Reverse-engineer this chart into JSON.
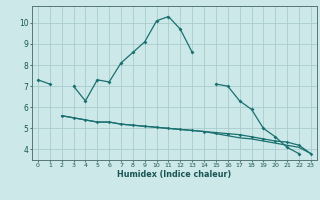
{
  "title": "",
  "xlabel": "Humidex (Indice chaleur)",
  "bg_color": "#cce8e8",
  "grid_color": "#aacccc",
  "line_color": "#1a7070",
  "x_values": [
    0,
    1,
    2,
    3,
    4,
    5,
    6,
    7,
    8,
    9,
    10,
    11,
    12,
    13,
    14,
    15,
    16,
    17,
    18,
    19,
    20,
    21,
    22,
    23
  ],
  "line1": [
    7.3,
    7.1,
    null,
    7.0,
    6.3,
    7.3,
    7.2,
    8.1,
    8.6,
    9.1,
    10.1,
    10.3,
    9.7,
    8.6,
    null,
    7.1,
    7.0,
    6.3,
    5.9,
    5.0,
    4.6,
    4.1,
    3.8,
    null
  ],
  "line2": [
    null,
    null,
    5.6,
    5.5,
    5.4,
    5.3,
    5.3,
    5.2,
    5.15,
    5.1,
    5.05,
    5.0,
    4.95,
    4.9,
    4.85,
    4.8,
    4.75,
    4.7,
    4.6,
    4.5,
    4.4,
    4.35,
    4.2,
    3.8
  ],
  "line3": [
    null,
    null,
    5.6,
    5.5,
    5.4,
    5.3,
    5.3,
    5.2,
    5.15,
    5.1,
    5.05,
    5.0,
    4.95,
    4.9,
    4.85,
    4.75,
    4.65,
    4.55,
    4.5,
    4.4,
    4.3,
    4.2,
    4.1,
    3.8
  ],
  "ylim": [
    3.5,
    10.8
  ],
  "xlim": [
    -0.5,
    23.5
  ],
  "yticks": [
    4,
    5,
    6,
    7,
    8,
    9,
    10
  ],
  "xticks": [
    0,
    1,
    2,
    3,
    4,
    5,
    6,
    7,
    8,
    9,
    10,
    11,
    12,
    13,
    14,
    15,
    16,
    17,
    18,
    19,
    20,
    21,
    22,
    23
  ]
}
